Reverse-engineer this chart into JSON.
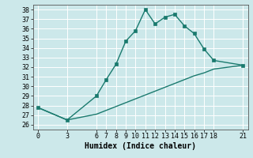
{
  "xlabel": "Humidex (Indice chaleur)",
  "line_color": "#1a7a6e",
  "bg_color": "#cce8ea",
  "grid_color": "#ffffff",
  "x_ticks": [
    0,
    3,
    6,
    7,
    8,
    9,
    10,
    11,
    12,
    13,
    14,
    15,
    16,
    17,
    18,
    21
  ],
  "ylim": [
    25.5,
    38.5
  ],
  "xlim": [
    -0.5,
    21.5
  ],
  "yticks": [
    26,
    27,
    28,
    29,
    30,
    31,
    32,
    33,
    34,
    35,
    36,
    37,
    38
  ],
  "series1_x": [
    0,
    3,
    6,
    7,
    8,
    9,
    10,
    11,
    12,
    13,
    14,
    15,
    16,
    17,
    18,
    21
  ],
  "series1_y": [
    27.8,
    26.5,
    29.0,
    30.7,
    32.3,
    34.7,
    35.8,
    38.0,
    36.5,
    37.2,
    37.5,
    36.3,
    35.5,
    33.9,
    32.7,
    32.2
  ],
  "series2_x": [
    0,
    3,
    6,
    7,
    8,
    9,
    10,
    11,
    12,
    13,
    14,
    15,
    16,
    17,
    18,
    21
  ],
  "series2_y": [
    27.8,
    26.5,
    27.1,
    27.5,
    27.9,
    28.3,
    28.7,
    29.1,
    29.5,
    29.9,
    30.3,
    30.7,
    31.1,
    31.4,
    31.8,
    32.2
  ],
  "marker_size": 2.5,
  "line_width": 1.0,
  "font_size_ticks": 6,
  "font_size_label": 7
}
